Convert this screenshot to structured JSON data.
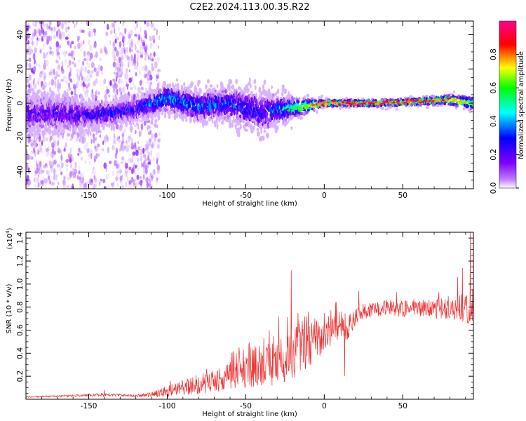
{
  "title": "C2E2.2024.113.00.35.R22",
  "chart_data": [
    {
      "type": "heatmap",
      "xlabel": "Height of straight line (km)",
      "ylabel": "Frequency (Hz)",
      "xlim": [
        -190,
        95
      ],
      "ylim": [
        -50,
        48
      ],
      "x_ticks": [
        "-150",
        "-100",
        "-50",
        "0",
        "50"
      ],
      "x_tick_values": [
        -150,
        -100,
        -50,
        0,
        50
      ],
      "y_ticks": [
        "-40",
        "-20",
        "0",
        "20",
        "40"
      ],
      "y_tick_values": [
        -40,
        -20,
        0,
        20,
        40
      ],
      "colorbar": {
        "label": "Normalized spectral amplitude",
        "range": [
          0,
          1
        ],
        "ticks": [
          "0.0",
          "0.2",
          "0.4",
          "0.6",
          "0.8"
        ],
        "tick_values": [
          0,
          0.2,
          0.4,
          0.6,
          0.8
        ],
        "colors": [
          "#ffffff",
          "#8000ff",
          "#0000ff",
          "#00ffff",
          "#00ff00",
          "#ffff00",
          "#ff0000",
          "#ff00a0"
        ]
      },
      "ridge": {
        "description_x": [
          -180,
          -150,
          -120,
          -100,
          -80,
          -60,
          -40,
          -20,
          0,
          20,
          40,
          60,
          80,
          95
        ],
        "center_freq": [
          -6,
          -7,
          -4,
          3,
          -2,
          0,
          -5,
          -3,
          0,
          0,
          0,
          1,
          2,
          0
        ],
        "peak_amplitude": [
          0.3,
          0.35,
          0.4,
          0.55,
          0.5,
          0.45,
          0.4,
          0.6,
          0.9,
          0.9,
          0.9,
          0.9,
          0.85,
          0.7
        ],
        "spread_hz": [
          12,
          8,
          7,
          8,
          9,
          10,
          12,
          6,
          2,
          2,
          2,
          2,
          3,
          4
        ]
      }
    },
    {
      "type": "line",
      "xlabel": "Height of straight line (km)",
      "ylabel": "SNR (10 * v/v)",
      "y_scale_label": "(x10",
      "y_scale_exp": "4",
      "y_scale_suffix": ")",
      "xlim": [
        -190,
        95
      ],
      "ylim": [
        0,
        1.45
      ],
      "x_ticks": [
        "-150",
        "-100",
        "-50",
        "0",
        "50"
      ],
      "x_tick_values": [
        -150,
        -100,
        -50,
        0,
        50
      ],
      "y_ticks": [
        "0.2",
        "0.4",
        "0.6",
        "0.8",
        "1.0",
        "1.2",
        "1.4"
      ],
      "y_tick_values": [
        0.2,
        0.4,
        0.6,
        0.8,
        1.0,
        1.2,
        1.4
      ],
      "color": "#ee3030",
      "trend_x": [
        -190,
        -160,
        -140,
        -120,
        -110,
        -100,
        -90,
        -80,
        -70,
        -60,
        -50,
        -40,
        -30,
        -20,
        -15,
        -10,
        0,
        10,
        15,
        20,
        25,
        30,
        40,
        50,
        60,
        70,
        80,
        90,
        95
      ],
      "trend_y": [
        0.02,
        0.03,
        0.04,
        0.03,
        0.04,
        0.07,
        0.1,
        0.13,
        0.16,
        0.2,
        0.23,
        0.26,
        0.3,
        0.4,
        0.45,
        0.45,
        0.55,
        0.65,
        0.62,
        0.72,
        0.76,
        0.78,
        0.8,
        0.78,
        0.8,
        0.78,
        0.8,
        0.8,
        0.8
      ],
      "noise_y": [
        0.005,
        0.01,
        0.015,
        0.01,
        0.02,
        0.05,
        0.07,
        0.09,
        0.1,
        0.12,
        0.14,
        0.16,
        0.18,
        0.22,
        0.25,
        0.2,
        0.15,
        0.12,
        0.12,
        0.08,
        0.07,
        0.07,
        0.07,
        0.07,
        0.08,
        0.09,
        0.1,
        0.14,
        0.16
      ],
      "spikes": [
        [
          -140,
          0.08
        ],
        [
          -98,
          0.16
        ],
        [
          -75,
          0.26
        ],
        [
          -47,
          0.45
        ],
        [
          -35,
          0.6
        ],
        [
          -29,
          0.72
        ],
        [
          -21,
          1.12
        ],
        [
          -14,
          0.68
        ],
        [
          -8,
          0.66
        ],
        [
          13,
          0.2
        ],
        [
          22,
          0.94
        ],
        [
          46,
          0.93
        ],
        [
          73,
          0.93
        ],
        [
          85,
          1.06
        ],
        [
          88,
          1.14
        ],
        [
          93,
          1.48
        ]
      ]
    }
  ]
}
